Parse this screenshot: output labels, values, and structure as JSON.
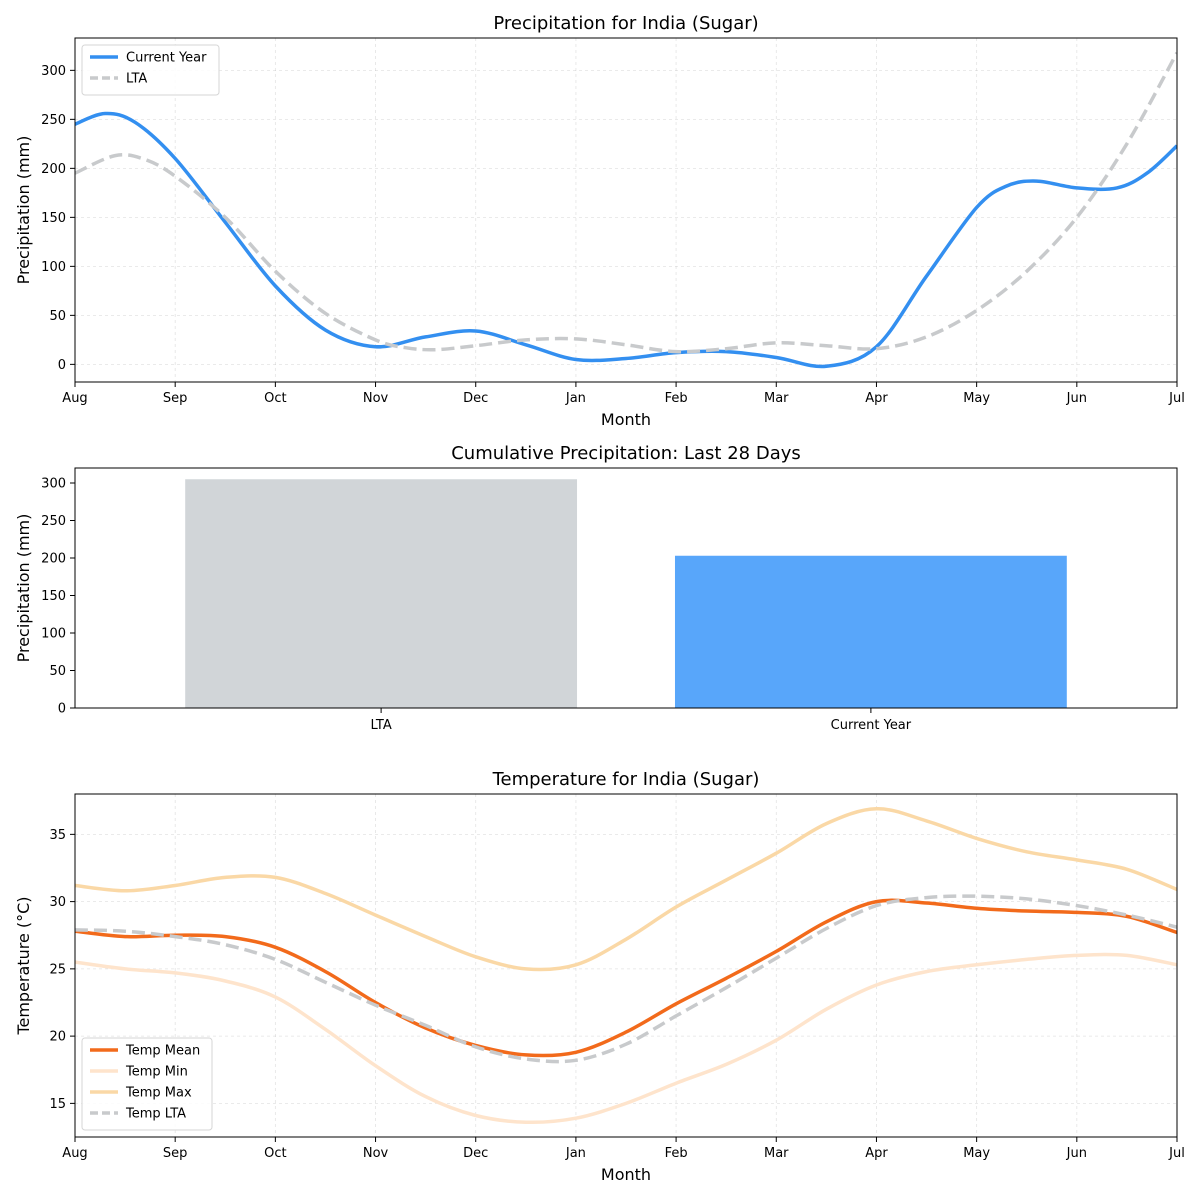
{
  "chart_data": [
    {
      "type": "line",
      "title": "Precipitation for India (Sugar)",
      "xlabel": "Month",
      "ylabel": "Precipitation (mm)",
      "categories": [
        "Aug",
        "Sep",
        "Oct",
        "Nov",
        "Dec",
        "Jan",
        "Feb",
        "Mar",
        "Apr",
        "May",
        "Jun",
        "Jul"
      ],
      "ylim": [
        -18,
        333
      ],
      "yticks": [
        0,
        50,
        100,
        150,
        200,
        250,
        300
      ],
      "grid": true,
      "legend": "top-left",
      "series": [
        {
          "name": "Current Year",
          "color": "#338ff0",
          "style": "solid",
          "x": [
            0,
            0.3,
            0.6,
            1,
            1.5,
            2,
            2.5,
            3,
            3.5,
            4,
            4.5,
            5,
            5.5,
            6,
            6.5,
            7,
            7.5,
            8,
            8.5,
            9,
            9.3,
            9.6,
            10,
            10.4,
            10.7,
            11
          ],
          "values": [
            245,
            256,
            247,
            210,
            145,
            80,
            35,
            18,
            28,
            34,
            20,
            5,
            6,
            12,
            13,
            7,
            -2,
            18,
            90,
            160,
            182,
            187,
            180,
            180,
            195,
            223
          ]
        },
        {
          "name": "LTA",
          "color": "#c8cacc",
          "style": "dashed",
          "x": [
            0,
            0.4,
            0.7,
            1,
            1.5,
            2,
            2.5,
            3,
            3.3,
            3.6,
            4,
            4.5,
            5,
            5.5,
            6,
            6.5,
            7,
            7.5,
            8,
            8.5,
            9,
            9.5,
            10,
            10.5,
            11
          ],
          "values": [
            195,
            213,
            209,
            192,
            150,
            95,
            52,
            25,
            17,
            15,
            19,
            25,
            26,
            20,
            13,
            16,
            22,
            19,
            16,
            28,
            55,
            95,
            150,
            225,
            318
          ]
        }
      ]
    },
    {
      "type": "bar",
      "title": "Cumulative Precipitation: Last 28 Days",
      "xlabel": "",
      "ylabel": "Precipitation (mm)",
      "categories": [
        "LTA",
        "Current Year"
      ],
      "values": [
        305,
        203
      ],
      "colors": [
        "#d1d5d8",
        "#58a6fa"
      ],
      "ylim": [
        0,
        320
      ],
      "yticks": [
        0,
        50,
        100,
        150,
        200,
        250,
        300
      ],
      "grid": false
    },
    {
      "type": "line",
      "title": "Temperature for India (Sugar)",
      "xlabel": "Month",
      "ylabel": "Temperature (°C)",
      "categories": [
        "Aug",
        "Sep",
        "Oct",
        "Nov",
        "Dec",
        "Jan",
        "Feb",
        "Mar",
        "Apr",
        "May",
        "Jun",
        "Jul"
      ],
      "ylim": [
        12.5,
        38
      ],
      "yticks": [
        15,
        20,
        25,
        30,
        35
      ],
      "grid": true,
      "legend": "bottom-left",
      "series": [
        {
          "name": "Temp Mean",
          "color": "#f26a1b",
          "style": "solid",
          "x": [
            0,
            0.5,
            1,
            1.5,
            2,
            2.5,
            3,
            3.5,
            4,
            4.5,
            5,
            5.5,
            6,
            6.5,
            7,
            7.5,
            8,
            8.5,
            9,
            9.5,
            10,
            10.5,
            11
          ],
          "values": [
            27.8,
            27.4,
            27.5,
            27.4,
            26.6,
            24.8,
            22.5,
            20.6,
            19.3,
            18.6,
            18.8,
            20.3,
            22.4,
            24.3,
            26.3,
            28.5,
            30.0,
            29.9,
            29.5,
            29.3,
            29.2,
            28.9,
            27.7
          ]
        },
        {
          "name": "Temp Min",
          "color": "#fee4cc",
          "style": "solid",
          "x": [
            0,
            0.5,
            1,
            1.5,
            2,
            2.5,
            3,
            3.5,
            4,
            4.5,
            5,
            5.5,
            6,
            6.5,
            7,
            7.5,
            8,
            8.5,
            9,
            9.5,
            10,
            10.5,
            11
          ],
          "values": [
            25.5,
            25.0,
            24.7,
            24.1,
            22.9,
            20.5,
            17.8,
            15.5,
            14.1,
            13.6,
            13.9,
            15.0,
            16.5,
            17.9,
            19.7,
            22.0,
            23.8,
            24.8,
            25.3,
            25.7,
            26.0,
            26.0,
            25.3
          ]
        },
        {
          "name": "Temp Max",
          "color": "#fad8a6",
          "style": "solid",
          "x": [
            0,
            0.5,
            1,
            1.5,
            2,
            2.5,
            3,
            3.5,
            4,
            4.5,
            5,
            5.5,
            6,
            6.5,
            7,
            7.5,
            8,
            8.5,
            9,
            9.5,
            10,
            10.5,
            11
          ],
          "values": [
            31.2,
            30.8,
            31.2,
            31.8,
            31.8,
            30.6,
            29.0,
            27.4,
            25.9,
            25.0,
            25.3,
            27.2,
            29.6,
            31.6,
            33.6,
            35.8,
            36.9,
            36.0,
            34.7,
            33.7,
            33.1,
            32.4,
            30.9
          ]
        },
        {
          "name": "Temp LTA",
          "color": "#c8cacc",
          "style": "dashed",
          "x": [
            0,
            0.5,
            1,
            1.5,
            2,
            2.5,
            3,
            3.5,
            4,
            4.5,
            5,
            5.5,
            6,
            6.5,
            7,
            7.5,
            8,
            8.5,
            9,
            9.5,
            10,
            10.5,
            11
          ],
          "values": [
            27.9,
            27.8,
            27.4,
            26.8,
            25.7,
            24.0,
            22.3,
            20.8,
            19.2,
            18.3,
            18.2,
            19.4,
            21.5,
            23.6,
            25.8,
            28.0,
            29.7,
            30.3,
            30.4,
            30.2,
            29.7,
            29.0,
            28.1
          ]
        }
      ]
    }
  ]
}
